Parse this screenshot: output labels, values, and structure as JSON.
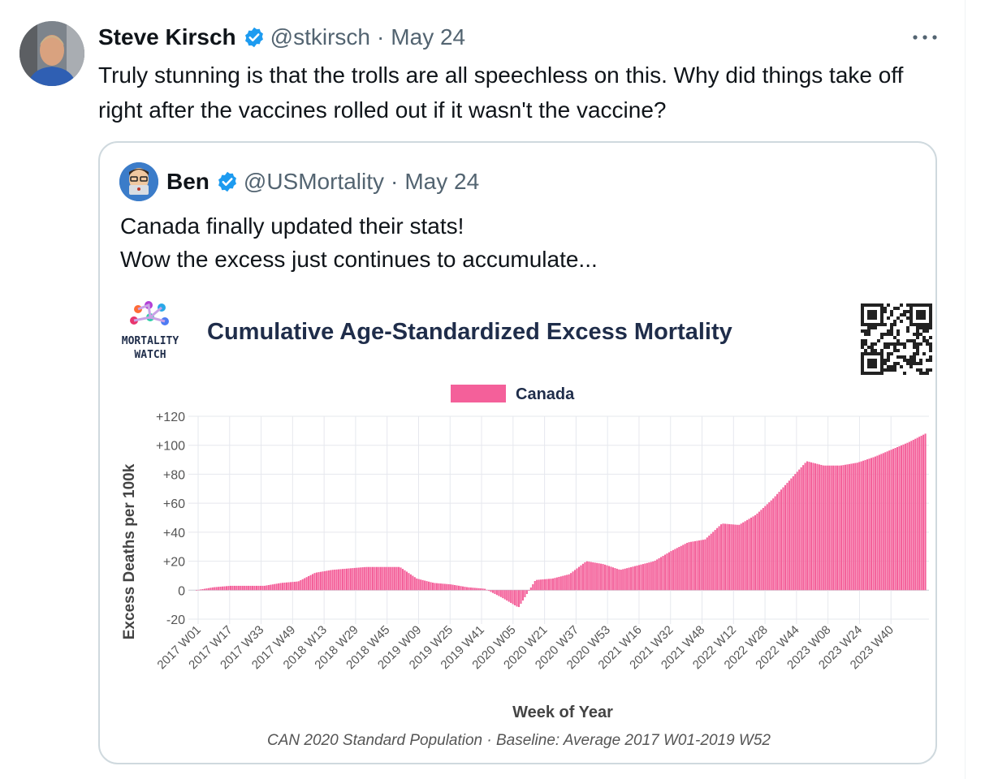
{
  "tweet": {
    "author_name": "Steve Kirsch",
    "handle": "@stkirsch",
    "separator": "·",
    "date": "May 24",
    "text": "Truly stunning is that the trolls are all speechless on this. Why did things take off right after the vaccines rolled out if it wasn't the vaccine?",
    "more_label": "···"
  },
  "quoted_tweet": {
    "author_name": "Ben",
    "handle": "@USMortality",
    "separator": "·",
    "date": "May 24",
    "text_line1": "Canada finally updated their stats!",
    "text_line2": "Wow the excess just continues to accumulate..."
  },
  "colors": {
    "verified_blue": "#1d9bf0",
    "series_pink": "#f4609a",
    "text_secondary": "#536471"
  },
  "chart_data": {
    "type": "bar",
    "logo_text_line1": "MORTALITY",
    "logo_text_line2": "WATCH",
    "title": "Cumulative Age-Standardized Excess Mortality",
    "legend": "Canada",
    "legend_position": "top-center",
    "xlabel": "Week of Year",
    "ylabel": "Excess Deaths per 100k",
    "footnote": "CAN 2020 Standard Population · Baseline: Average 2017 W01-2019 W52",
    "ylim": [
      -20,
      120
    ],
    "y_ticks": [
      "+120",
      "+100",
      "+80",
      "+60",
      "+40",
      "+20",
      "0",
      "-20"
    ],
    "grid": true,
    "x_tick_labels": [
      "2017 W01",
      "2017 W17",
      "2017 W33",
      "2017 W49",
      "2018 W13",
      "2018 W29",
      "2018 W45",
      "2019 W09",
      "2019 W25",
      "2019 W41",
      "2020 W05",
      "2020 W21",
      "2020 W37",
      "2020 W53",
      "2021 W16",
      "2021 W32",
      "2021 W48",
      "2022 W12",
      "2022 W28",
      "2022 W44",
      "2023 W08",
      "2023 W24",
      "2023 W40"
    ],
    "series": [
      {
        "name": "Canada",
        "values": [
          0,
          2,
          3,
          3,
          3,
          5,
          6,
          12,
          14,
          15,
          16,
          16,
          16,
          8,
          5,
          4,
          2,
          1,
          -5,
          -12,
          7,
          8,
          11,
          20,
          18,
          14,
          17,
          20,
          27,
          33,
          35,
          46,
          45,
          52,
          63,
          76,
          89,
          86,
          86,
          88,
          92,
          97,
          102,
          108
        ]
      }
    ]
  }
}
